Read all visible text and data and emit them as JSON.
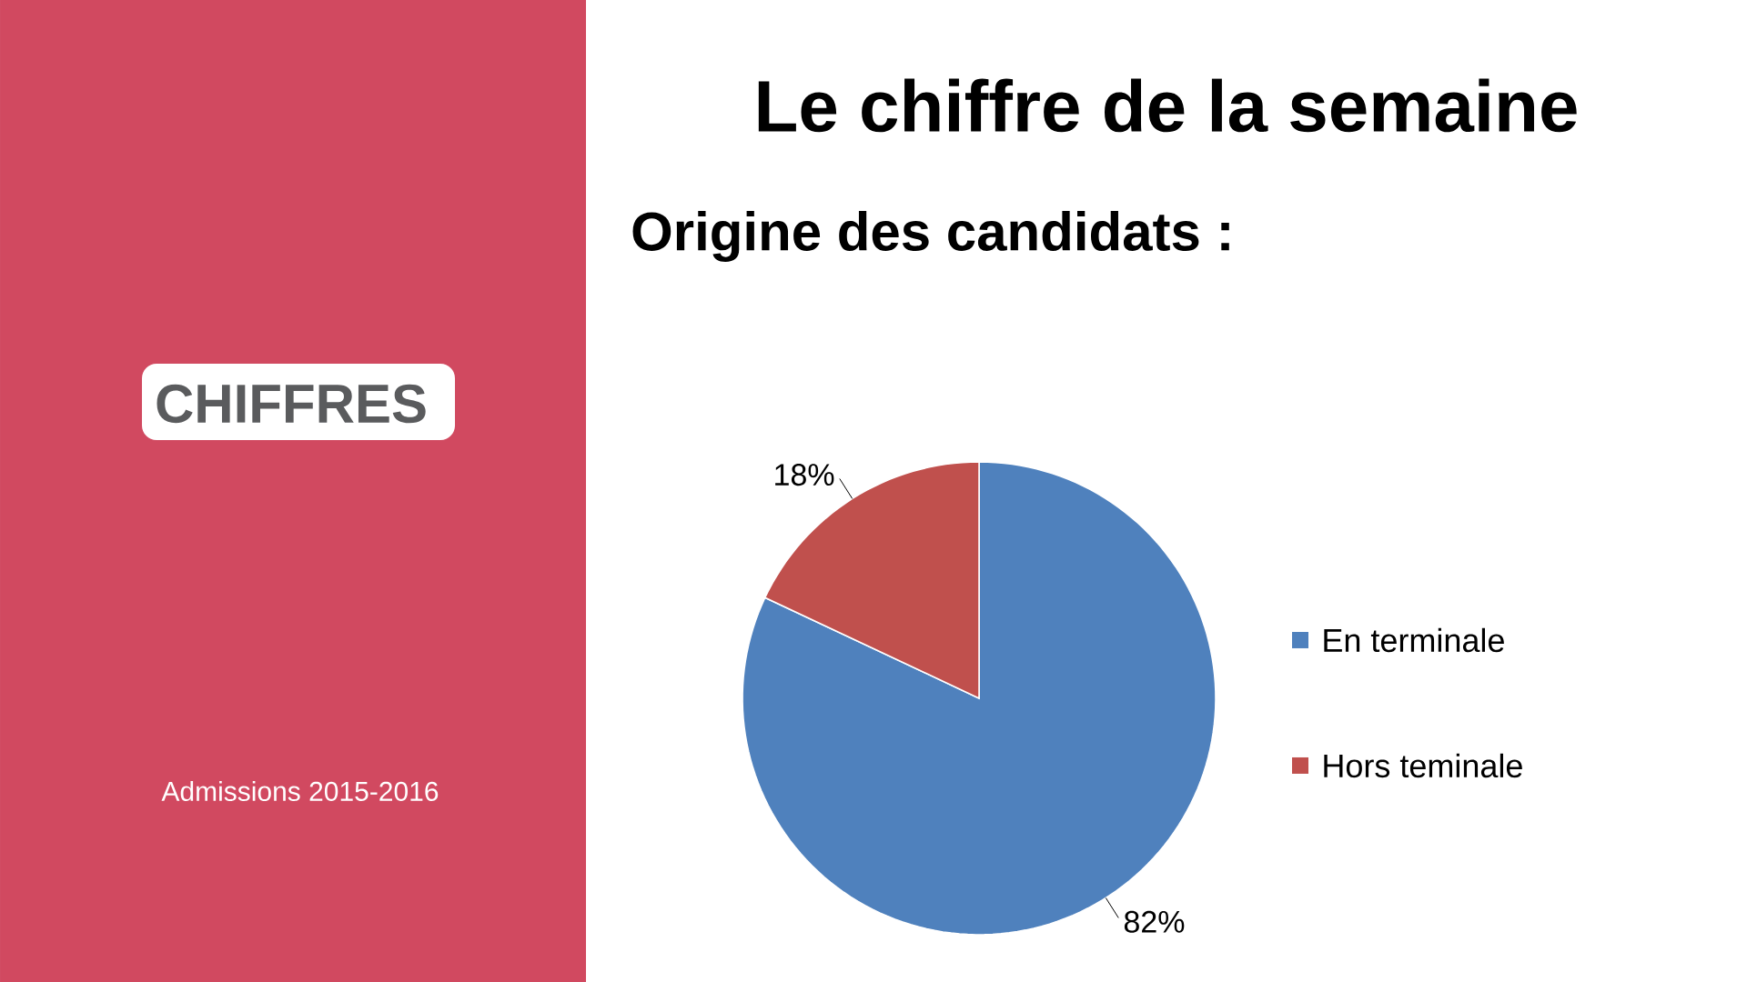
{
  "chart_data": {
    "type": "pie",
    "title": "Le chiffre de la semaine",
    "subtitle": "Origine des candidats :",
    "categories": [
      "En terminale",
      "Hors teminale"
    ],
    "values": [
      82,
      18
    ],
    "colors": [
      "#4f81bd",
      "#c0504d"
    ],
    "value_labels": [
      "82%",
      "18%"
    ],
    "legend": "right",
    "annotations": [
      "CHIFFRES",
      "Admissions 2015-2016"
    ]
  }
}
